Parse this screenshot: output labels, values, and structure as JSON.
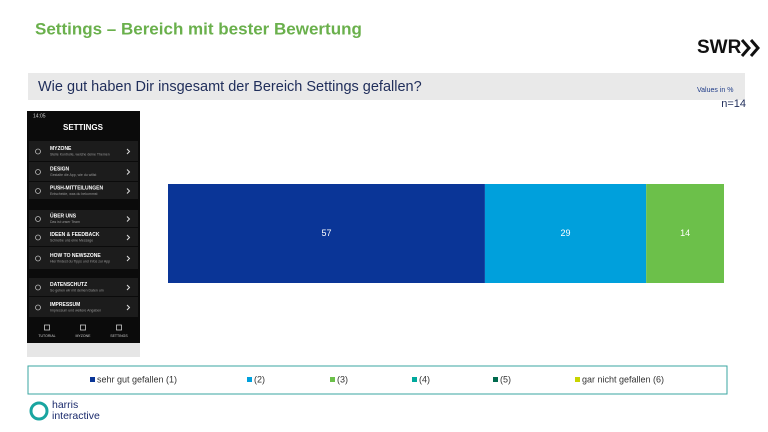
{
  "slide": {
    "title": "Settings – Bereich mit bester Bewertung",
    "question": "Wie gut haben Dir insgesamt der Bereich Settings gefallen?",
    "note": "Values in %",
    "n": "n=14",
    "logo": "SWR",
    "brand": [
      "harris",
      "interactive"
    ]
  },
  "phone": {
    "time": "14:05",
    "header": "SETTINGS",
    "items": [
      {
        "label": "MYZONE",
        "sub": "Stelle Kontrolle, welche deine Themen"
      },
      {
        "label": "DESIGN",
        "sub": "Gestalte die App, wie du willst"
      },
      {
        "label": "PUSH-MITTEILUNGEN",
        "sub": "Entscheide, was du bekommst"
      },
      {
        "label": "ÜBER UNS",
        "sub": "Das ist unser Team"
      },
      {
        "label": "IDEEN & FEEDBACK",
        "sub": "Schreibe uns eine Message"
      },
      {
        "label": "HOW TO NEWSZONE",
        "sub": "Hier findest du Tipps und Infos zur App"
      },
      {
        "label": "DATENSCHUTZ",
        "sub": "So gehen wir mit deinen Daten um"
      },
      {
        "label": "IMPRESSUM",
        "sub": "Impressum und weitere Angaben"
      }
    ],
    "nav": [
      "TUTORIAL",
      "MYZONE",
      "SETTINGS"
    ]
  },
  "chart_data": {
    "type": "stacked-bar",
    "orientation": "horizontal",
    "categories": [
      null
    ],
    "xlim": [
      0,
      100
    ],
    "legend": "bottom",
    "series": [
      {
        "name": "sehr gut gefallen (1)",
        "color": "#0a3597",
        "values": [
          57
        ]
      },
      {
        "name": "(2)",
        "color": "#00a0dc",
        "values": [
          29
        ]
      },
      {
        "name": "(3)",
        "color": "#6cc04a",
        "values": [
          14
        ]
      },
      {
        "name": "(4)",
        "color": "#00a99d",
        "values": [
          0
        ]
      },
      {
        "name": "(5)",
        "color": "#006a4e",
        "values": [
          0
        ]
      },
      {
        "name": "gar nicht gefallen (6)",
        "color": "#c8d400",
        "values": [
          0
        ]
      }
    ]
  }
}
